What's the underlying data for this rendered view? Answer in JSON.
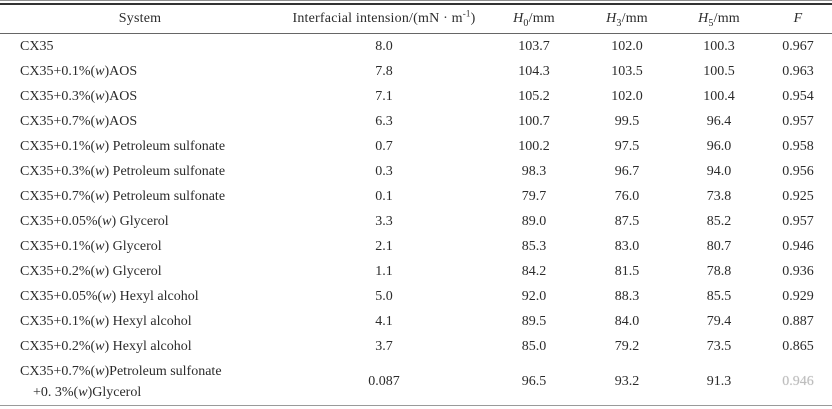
{
  "page": {
    "background": "#ffffff",
    "text_color": "#2b2b2b",
    "rule_dark": "#333333",
    "rule_light": "#8f8f8f"
  },
  "table": {
    "headers": {
      "system": "System",
      "interfacial": {
        "pre": "Interfacial intension/(mN · m",
        "sup": "-1",
        "post": ")"
      },
      "h0": {
        "base": "H",
        "sub": "0",
        "unit": "/mm"
      },
      "h3": {
        "base": "H",
        "sub": "3",
        "unit": "/mm"
      },
      "h5": {
        "base": "H",
        "sub": "5",
        "unit": "/mm"
      },
      "f": "F"
    },
    "rows": [
      {
        "system": "CX35",
        "interfacial": "8.0",
        "h0": "103.7",
        "h3": "102.0",
        "h5": "100.3",
        "f": "0.967"
      },
      {
        "system": "CX35+0.1%(w)AOS",
        "interfacial": "7.8",
        "h0": "104.3",
        "h3": "103.5",
        "h5": "100.5",
        "f": "0.963"
      },
      {
        "system": "CX35+0.3%(w)AOS",
        "interfacial": "7.1",
        "h0": "105.2",
        "h3": "102.0",
        "h5": "100.4",
        "f": "0.954"
      },
      {
        "system": "CX35+0.7%(w)AOS",
        "interfacial": "6.3",
        "h0": "100.7",
        "h3": "99.5",
        "h5": "96.4",
        "f": "0.957"
      },
      {
        "system": "CX35+0.1%(w) Petroleum sulfonate",
        "interfacial": "0.7",
        "h0": "100.2",
        "h3": "97.5",
        "h5": "96.0",
        "f": "0.958"
      },
      {
        "system": "CX35+0.3%(w) Petroleum sulfonate",
        "interfacial": "0.3",
        "h0": "98.3",
        "h3": "96.7",
        "h5": "94.0",
        "f": "0.956"
      },
      {
        "system": "CX35+0.7%(w) Petroleum sulfonate",
        "interfacial": "0.1",
        "h0": "79.7",
        "h3": "76.0",
        "h5": "73.8",
        "f": "0.925"
      },
      {
        "system": "CX35+0.05%(w) Glycerol",
        "interfacial": "3.3",
        "h0": "89.0",
        "h3": "87.5",
        "h5": "85.2",
        "f": "0.957"
      },
      {
        "system": "CX35+0.1%(w) Glycerol",
        "interfacial": "2.1",
        "h0": "85.3",
        "h3": "83.0",
        "h5": "80.7",
        "f": "0.946"
      },
      {
        "system": "CX35+0.2%(w) Glycerol",
        "interfacial": "1.1",
        "h0": "84.2",
        "h3": "81.5",
        "h5": "78.8",
        "f": "0.936"
      },
      {
        "system": "CX35+0.05%(w) Hexyl alcohol",
        "interfacial": "5.0",
        "h0": "92.0",
        "h3": "88.3",
        "h5": "85.5",
        "f": "0.929"
      },
      {
        "system": "CX35+0.1%(w) Hexyl alcohol",
        "interfacial": "4.1",
        "h0": "89.5",
        "h3": "84.0",
        "h5": "79.4",
        "f": "0.887"
      },
      {
        "system": "CX35+0.2%(w) Hexyl alcohol",
        "interfacial": "3.7",
        "h0": "85.0",
        "h3": "79.2",
        "h5": "73.5",
        "f": "0.865"
      },
      {
        "system_lines": [
          "CX35+0.7%(w)Petroleum sulfonate",
          "+0. 3%(w)Glycerol"
        ],
        "interfacial": "0.087",
        "h0": "96.5",
        "h3": "93.2",
        "h5": "91.3",
        "f": "0.946",
        "f_faded": true
      }
    ]
  }
}
